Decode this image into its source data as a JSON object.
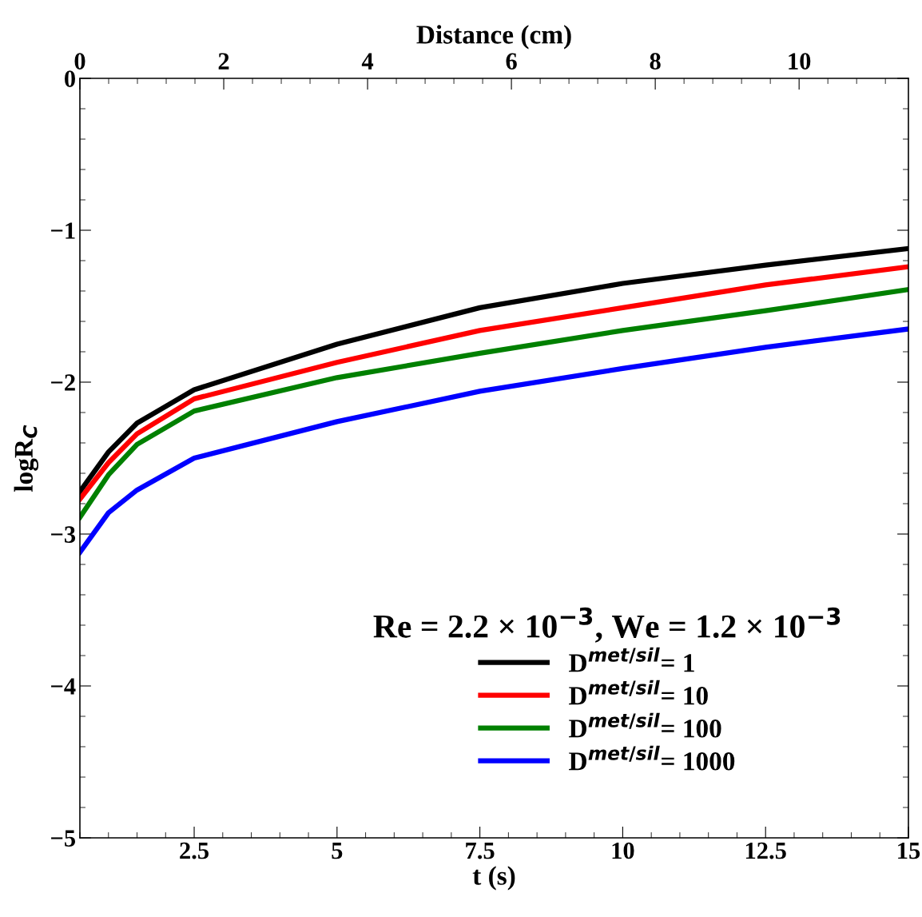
{
  "chart_data": {
    "type": "line",
    "xlabel": "t (s)",
    "ylabel": "logR$_{C}$",
    "x2label": "Distance (cm)",
    "legend_title": "Re = 2.2 × 10$^{−3}$, We = 1.2 × 10$^{−3}$",
    "x": [
      0.5,
      1,
      1.5,
      2.5,
      5,
      7.5,
      10,
      12.5,
      15
    ],
    "series": [
      {
        "name": "D$^{met/sil}$= 1",
        "color": "#000000",
        "values": [
          -2.72,
          -2.46,
          -2.27,
          -2.05,
          -1.75,
          -1.51,
          -1.35,
          -1.23,
          -1.12
        ]
      },
      {
        "name": "D$^{met/sil}$= 10",
        "color": "#ff0000",
        "values": [
          -2.77,
          -2.53,
          -2.34,
          -2.11,
          -1.87,
          -1.66,
          -1.51,
          -1.36,
          -1.24
        ]
      },
      {
        "name": "D$^{met/sil}$= 100",
        "color": "#008000",
        "values": [
          -2.89,
          -2.61,
          -2.41,
          -2.19,
          -1.97,
          -1.81,
          -1.66,
          -1.53,
          -1.39
        ]
      },
      {
        "name": "D$^{met/sil}$= 1000",
        "color": "#0000ff",
        "values": [
          -3.12,
          -2.86,
          -2.71,
          -2.5,
          -2.26,
          -2.06,
          -1.91,
          -1.77,
          -1.65
        ]
      }
    ],
    "xlim": [
      0.5,
      15
    ],
    "xticks": [
      2.5,
      5,
      7.5,
      10,
      12.5,
      15
    ],
    "x2lim": [
      0,
      11.52
    ],
    "x2ticks": [
      0,
      2,
      4,
      6,
      8,
      10
    ],
    "ylim": [
      -5,
      0
    ],
    "yticks": [
      {
        "value": -5,
        "label": "−5"
      },
      {
        "value": -4,
        "label": "−4"
      },
      {
        "value": -3,
        "label": "−3"
      },
      {
        "value": -2,
        "label": "−2"
      },
      {
        "value": -1,
        "label": "−1"
      },
      0
    ],
    "grid": false,
    "legend": "bottom right",
    "line_style": "solid",
    "marker": "none"
  }
}
